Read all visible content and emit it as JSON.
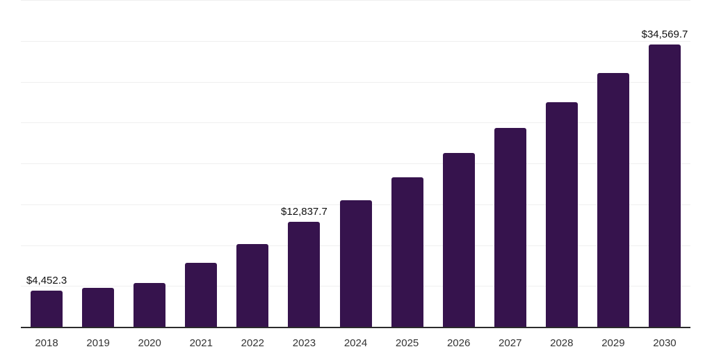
{
  "chart_data": {
    "type": "bar",
    "categories": [
      "2018",
      "2019",
      "2020",
      "2021",
      "2022",
      "2023",
      "2024",
      "2025",
      "2026",
      "2027",
      "2028",
      "2029",
      "2030"
    ],
    "values": [
      4452.3,
      4800,
      5400,
      7850,
      10150,
      12837.7,
      15450,
      18300,
      21250,
      24300,
      27450,
      31050,
      34569.7
    ],
    "value_labels": [
      "$4,452.3",
      "",
      "",
      "",
      "",
      "$12,837.7",
      "",
      "",
      "",
      "",
      "",
      "",
      "$34,569.7"
    ],
    "labeled_points": [
      {
        "category": "2018",
        "label": "$4,452.3"
      },
      {
        "category": "2023",
        "label": "$12,837.7"
      },
      {
        "category": "2030",
        "label": "$34,569.7"
      }
    ],
    "xlabel": "",
    "ylabel": "",
    "ylim": [
      0,
      40000
    ],
    "gridline_step": 5000,
    "grid": "horizontal-only",
    "y_tick_labels_visible": false,
    "legend": "none",
    "colors": {
      "bar": "#36134d",
      "gridline": "#efefef",
      "axis_line": "#2b2b2b",
      "x_tick_label": "#333333",
      "value_label": "#0f0f0f",
      "background": "#ffffff"
    }
  }
}
